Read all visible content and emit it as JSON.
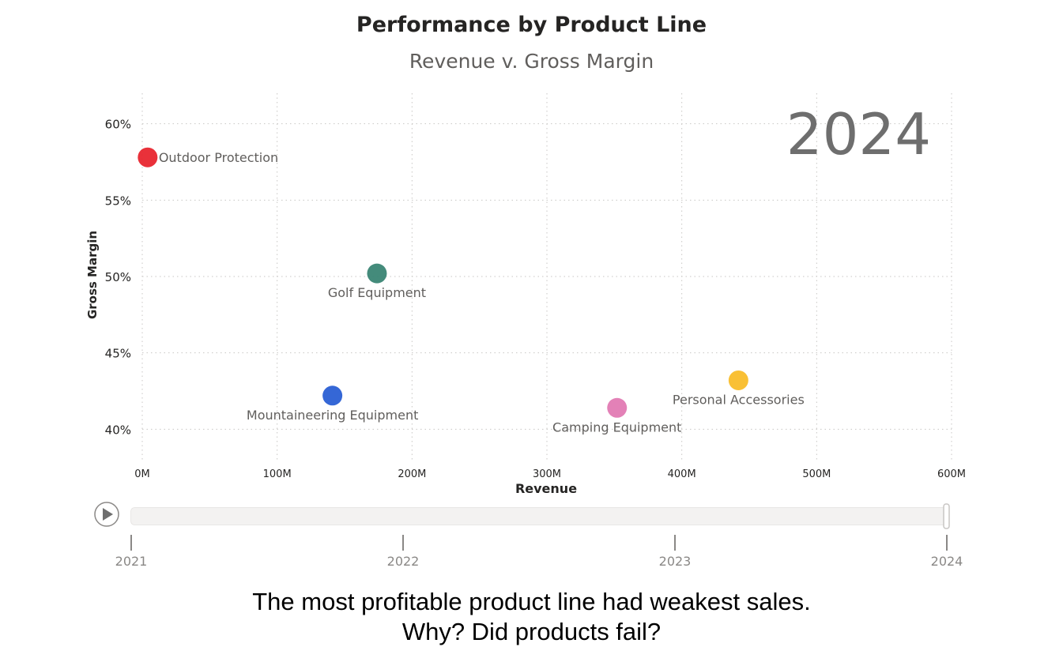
{
  "chart_data": {
    "type": "scatter",
    "title": "Performance by Product Line",
    "subtitle": "Revenue v. Gross Margin",
    "xlabel": "Revenue",
    "ylabel": "Gross Margin",
    "xlim": [
      0,
      600
    ],
    "ylim": [
      38,
      62
    ],
    "x_ticks": [
      0,
      100,
      200,
      300,
      400,
      500,
      600
    ],
    "x_tick_labels": [
      "0M",
      "100M",
      "200M",
      "300M",
      "400M",
      "500M",
      "600M"
    ],
    "y_ticks": [
      40,
      45,
      50,
      55,
      60
    ],
    "y_tick_labels": [
      "40%",
      "45%",
      "50%",
      "55%",
      "60%"
    ],
    "grid": true,
    "play_axis_value": "2024",
    "series": [
      {
        "name": "Outdoor Protection",
        "x": 4,
        "y": 57.8,
        "color": "#e8262f"
      },
      {
        "name": "Golf Equipment",
        "x": 174,
        "y": 50.2,
        "color": "#3a8574"
      },
      {
        "name": "Mountaineering Equipment",
        "x": 141,
        "y": 42.2,
        "color": "#2a5fd4"
      },
      {
        "name": "Camping Equipment",
        "x": 352,
        "y": 41.4,
        "color": "#e27ab3"
      },
      {
        "name": "Personal Accessories",
        "x": 442,
        "y": 43.2,
        "color": "#f9bd2a"
      }
    ]
  },
  "play_axis": {
    "ticks": [
      "2021",
      "2022",
      "2023",
      "2024"
    ],
    "progress": 1.0
  },
  "caption": {
    "line1": "The most profitable product line had weakest sales.",
    "line2": "Why? Did products fail?"
  }
}
